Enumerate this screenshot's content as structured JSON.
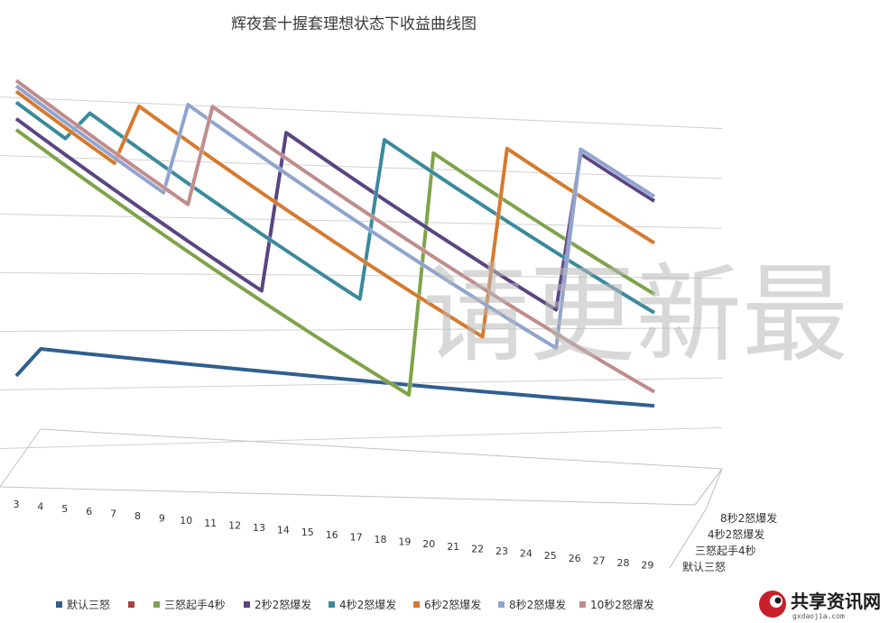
{
  "chart_data": {
    "type": "line",
    "title": "辉夜套十握套理想状态下收益曲线图",
    "x": [
      "3",
      "4",
      "5",
      "6",
      "7",
      "8",
      "9",
      "10",
      "11",
      "12",
      "13",
      "14",
      "15",
      "16",
      "17",
      "18",
      "19",
      "20",
      "21",
      "22",
      "23",
      "24",
      "25",
      "26",
      "27",
      "28",
      "29"
    ],
    "depth_labels": [
      "8秒2怒爆发",
      "4秒2怒爆发",
      "三怒起手4秒",
      "默认三怒"
    ],
    "legend": [
      "默认三怒",
      "",
      "三怒起手4秒",
      "2秒2怒爆发",
      "4秒2怒爆发",
      "6秒2怒爆发",
      "8秒2怒爆发",
      "10秒2怒爆发"
    ],
    "series": [
      {
        "name": "默认三怒",
        "color": "#2f5f8f",
        "values": [
          47,
          52,
          51.6,
          51.2,
          50.8,
          50.4,
          50,
          49.6,
          49.2,
          48.8,
          48.4,
          48,
          47.6,
          47.2,
          46.8,
          46.4,
          46,
          45.6,
          45.2,
          44.8,
          44.4,
          44,
          43.6,
          43.2,
          42.8,
          42.4,
          42
        ]
      },
      {
        "name": "三怒起手4秒",
        "color": "#7fa34a",
        "values": [
          92,
          89,
          86,
          83,
          80,
          77,
          74,
          71,
          68,
          65,
          62,
          59,
          56,
          53,
          50,
          47,
          44,
          93,
          90,
          87,
          84,
          81,
          78,
          75,
          72,
          69,
          66
        ]
      },
      {
        "name": "2秒2怒爆发",
        "color": "#5a4482",
        "values": [
          94,
          91,
          88,
          85,
          82,
          79,
          76,
          73,
          70,
          67,
          64,
          95,
          92,
          89,
          86,
          83,
          80,
          77,
          74,
          71,
          68,
          65,
          62,
          95,
          92,
          89,
          86
        ]
      },
      {
        "name": "4秒2怒爆发",
        "color": "#3a8a9c",
        "values": [
          97,
          94,
          91,
          96,
          93,
          90,
          87,
          84,
          81,
          78,
          75,
          72,
          69,
          66,
          63,
          95,
          92,
          89,
          86,
          83,
          80,
          77,
          74,
          71,
          68,
          65,
          62
        ]
      },
      {
        "name": "6秒2怒爆发",
        "color": "#d57a2e",
        "values": [
          99,
          96,
          93,
          90,
          87,
          98,
          95,
          92,
          89,
          86,
          83,
          80,
          77,
          74,
          71,
          68,
          65,
          62,
          59,
          56,
          95,
          92,
          89,
          86,
          83,
          80,
          77
        ]
      },
      {
        "name": "8秒2怒爆发",
        "color": "#8fa4cf",
        "values": [
          100,
          97,
          94,
          91,
          88,
          85,
          82,
          99,
          96,
          93,
          90,
          87,
          84,
          81,
          78,
          75,
          72,
          69,
          66,
          63,
          60,
          57,
          54,
          96,
          93,
          90,
          87
        ]
      },
      {
        "name": "10秒2怒爆发",
        "color": "#c08c8c",
        "values": [
          101,
          98,
          95,
          92,
          89,
          86,
          83,
          80,
          99,
          96,
          93,
          90,
          87,
          84,
          81,
          78,
          75,
          72,
          69,
          66,
          63,
          60,
          57,
          54,
          51,
          48,
          45
        ]
      }
    ]
  },
  "watermark": "请更新最",
  "logo": {
    "name": "共享资讯网",
    "sub": "gxdaojia.com"
  }
}
